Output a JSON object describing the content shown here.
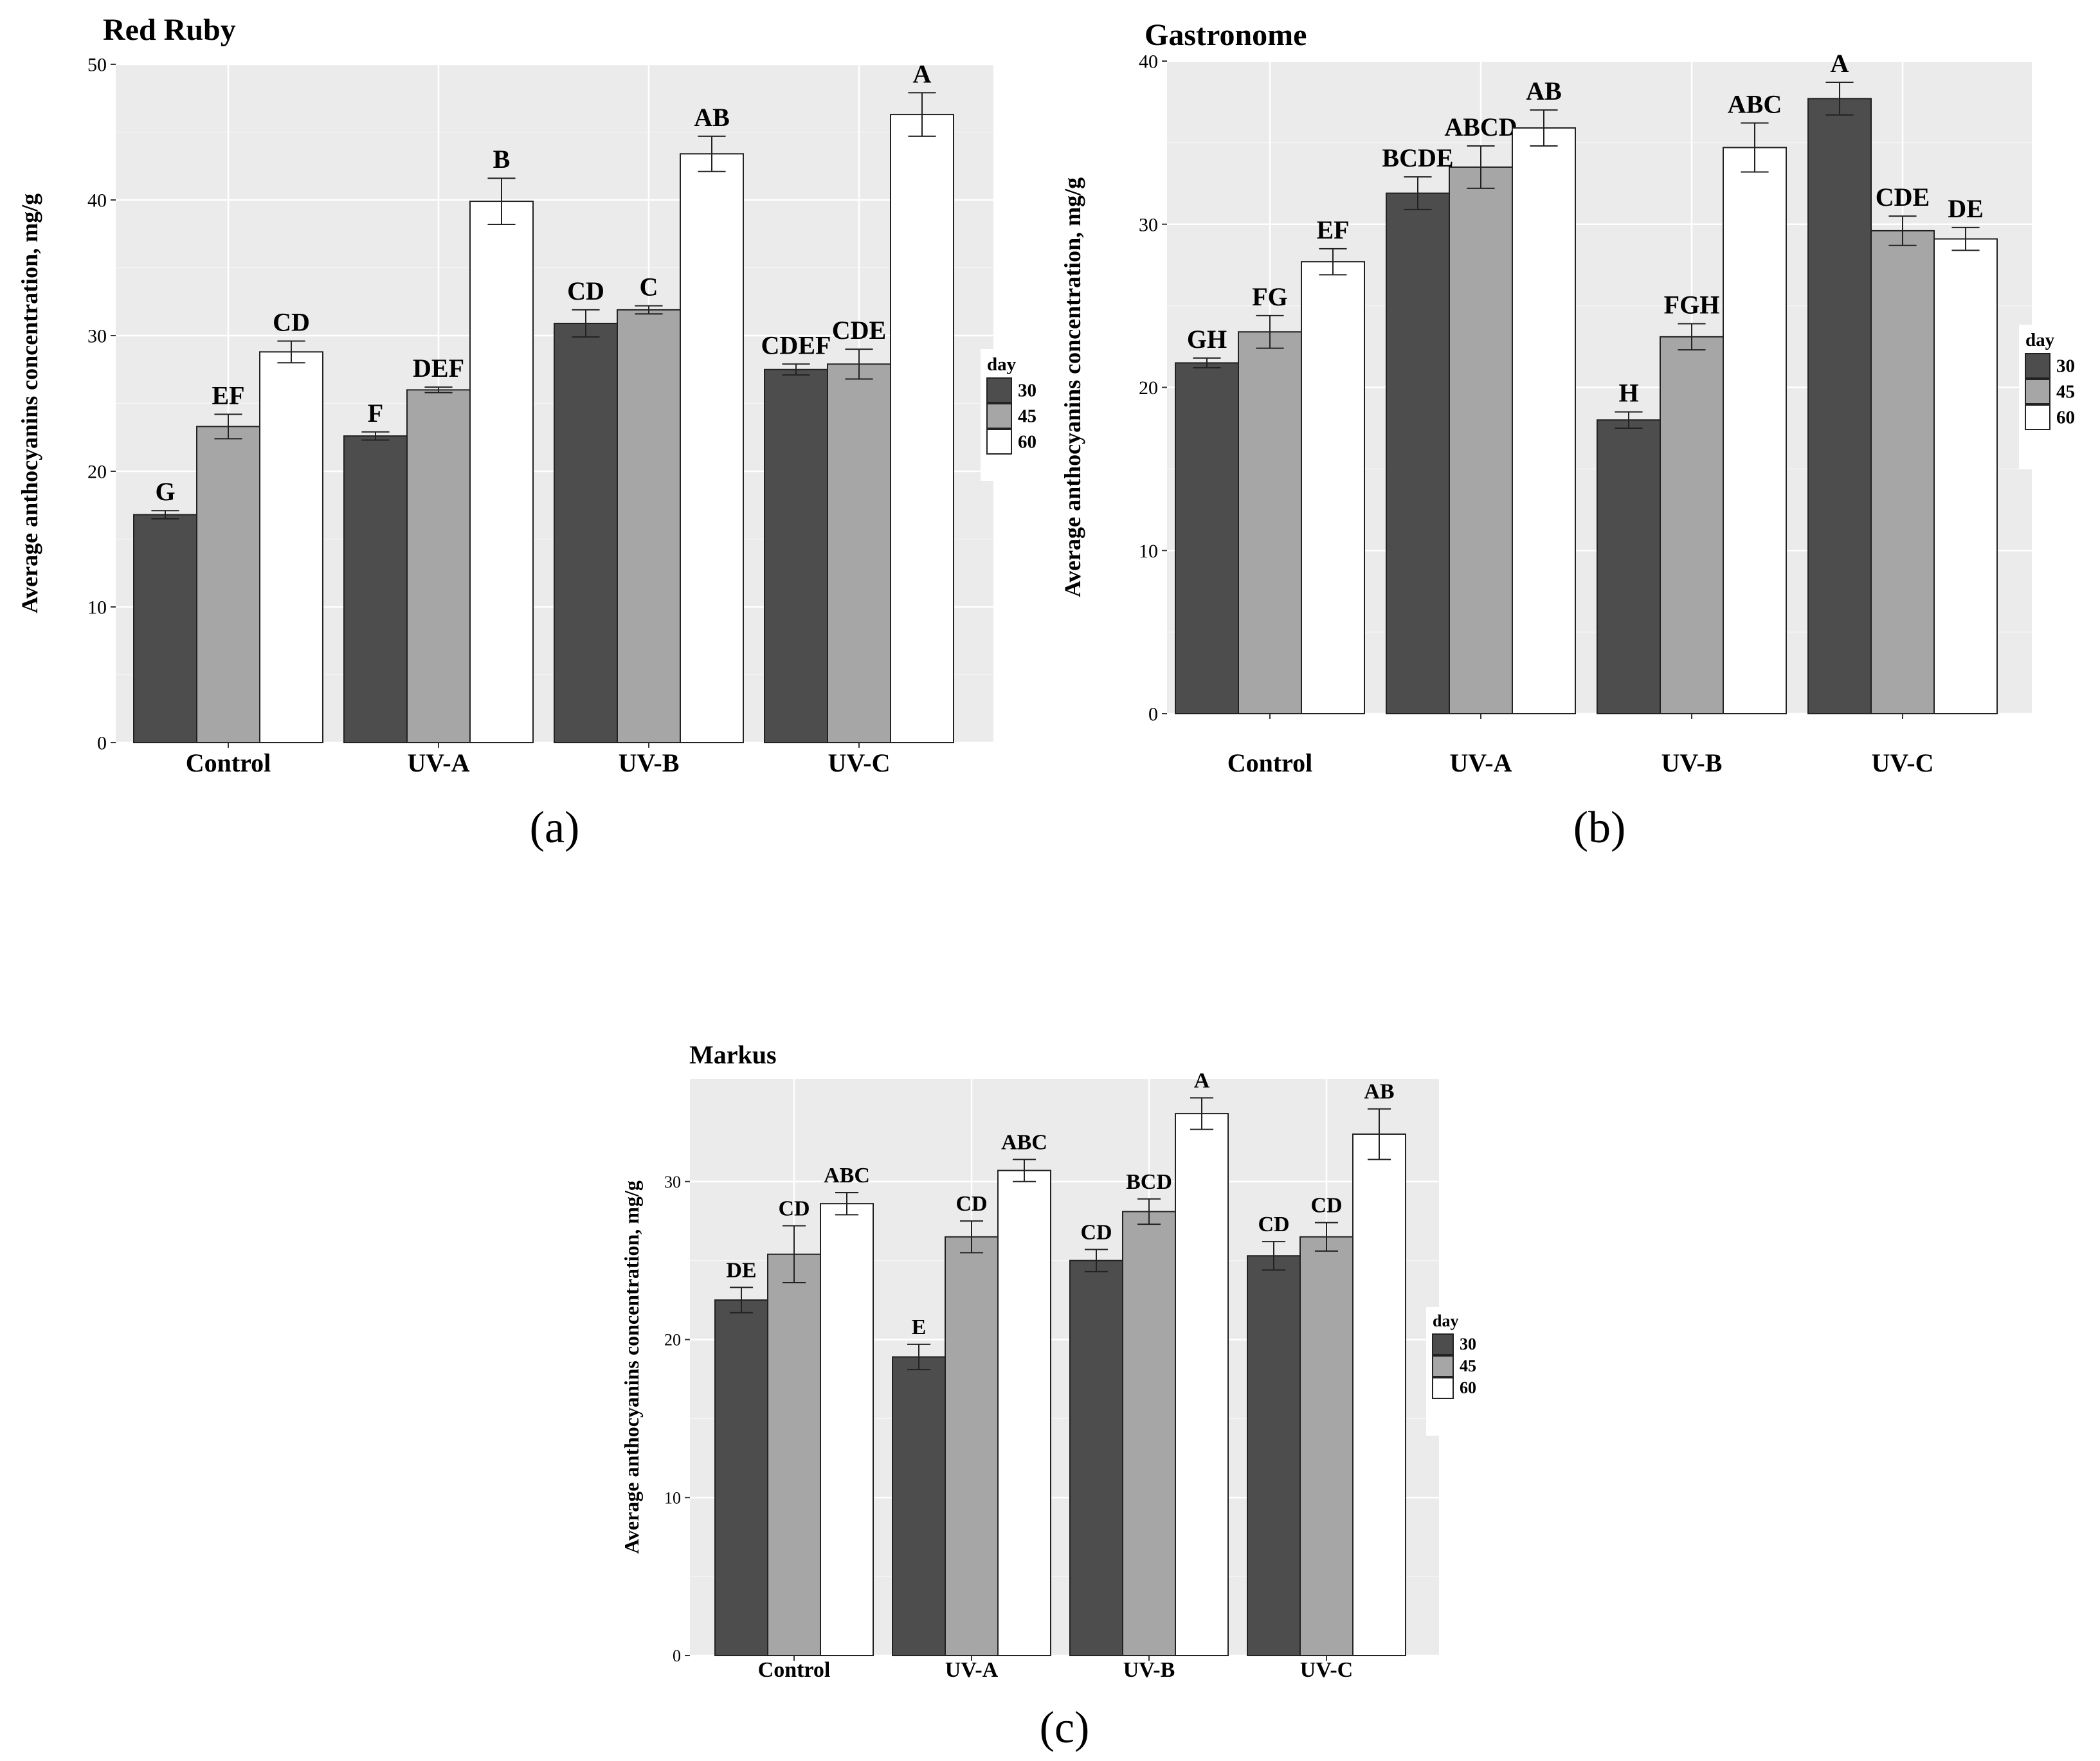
{
  "legend_title": "day",
  "series_colors": [
    "#4d4d4d",
    "#a6a6a6",
    "#ffffff"
  ],
  "panel_bg": "#ebebeb",
  "chart_data": [
    {
      "type": "bar",
      "title": "Red Ruby",
      "caption": "(a)",
      "ylabel": "Average anthocyanins concentration, mg/g",
      "xlabel": "",
      "ylim": [
        0,
        50
      ],
      "yticks": [
        0,
        10,
        20,
        30,
        40,
        50
      ],
      "categories": [
        "Control",
        "UV-A",
        "UV-B",
        "UV-C"
      ],
      "series": [
        {
          "name": "30",
          "values": [
            16.8,
            22.6,
            30.9,
            27.5
          ],
          "errors": [
            0.3,
            0.3,
            1.0,
            0.4
          ],
          "labels": [
            "G",
            "F",
            "CD",
            "CDEF"
          ]
        },
        {
          "name": "45",
          "values": [
            23.3,
            26.0,
            31.9,
            27.9
          ],
          "errors": [
            0.9,
            0.2,
            0.3,
            1.1
          ],
          "labels": [
            "EF",
            "DEF",
            "C",
            "CDE"
          ]
        },
        {
          "name": "60",
          "values": [
            28.8,
            39.9,
            43.4,
            46.3
          ],
          "errors": [
            0.8,
            1.7,
            1.3,
            1.6
          ],
          "labels": [
            "CD",
            "B",
            "AB",
            "A"
          ]
        }
      ]
    },
    {
      "type": "bar",
      "title": "Gastronome",
      "caption": "(b)",
      "ylabel": "Average anthocyanins concentration, mg/g",
      "xlabel": "",
      "ylim": [
        0,
        40
      ],
      "yticks": [
        0,
        10,
        20,
        30,
        40
      ],
      "categories": [
        "Control",
        "UV-A",
        "UV-B",
        "UV-C"
      ],
      "series": [
        {
          "name": "30",
          "values": [
            21.5,
            31.9,
            18.0,
            37.7
          ],
          "errors": [
            0.3,
            1.0,
            0.5,
            1.0
          ],
          "labels": [
            "GH",
            "BCDE",
            "H",
            "A"
          ]
        },
        {
          "name": "45",
          "values": [
            23.4,
            33.5,
            23.1,
            29.6
          ],
          "errors": [
            1.0,
            1.3,
            0.8,
            0.9
          ],
          "labels": [
            "FG",
            "ABCD",
            "FGH",
            "CDE"
          ]
        },
        {
          "name": "60",
          "values": [
            27.7,
            35.9,
            34.7,
            29.1
          ],
          "errors": [
            0.8,
            1.1,
            1.5,
            0.7
          ],
          "labels": [
            "EF",
            "AB",
            "ABC",
            "DE"
          ]
        }
      ]
    },
    {
      "type": "bar",
      "title": "Markus",
      "caption": "(c)",
      "ylabel": "Average anthocyanins concentration, mg/g",
      "xlabel": "",
      "ylim": [
        0,
        36.5
      ],
      "yticks": [
        0,
        10,
        20,
        30
      ],
      "categories": [
        "Control",
        "UV-A",
        "UV-B",
        "UV-C"
      ],
      "series": [
        {
          "name": "30",
          "values": [
            22.5,
            18.9,
            25.0,
            25.3
          ],
          "errors": [
            0.8,
            0.8,
            0.7,
            0.9
          ],
          "labels": [
            "DE",
            "E",
            "CD",
            "CD"
          ]
        },
        {
          "name": "45",
          "values": [
            25.4,
            26.5,
            28.1,
            26.5
          ],
          "errors": [
            1.8,
            1.0,
            0.8,
            0.9
          ],
          "labels": [
            "CD",
            "CD",
            "BCD",
            "CD"
          ]
        },
        {
          "name": "60",
          "values": [
            28.6,
            30.7,
            34.3,
            33.0
          ],
          "errors": [
            0.7,
            0.7,
            1.0,
            1.6
          ],
          "labels": [
            "ABC",
            "ABC",
            "A",
            "AB"
          ]
        }
      ]
    }
  ]
}
